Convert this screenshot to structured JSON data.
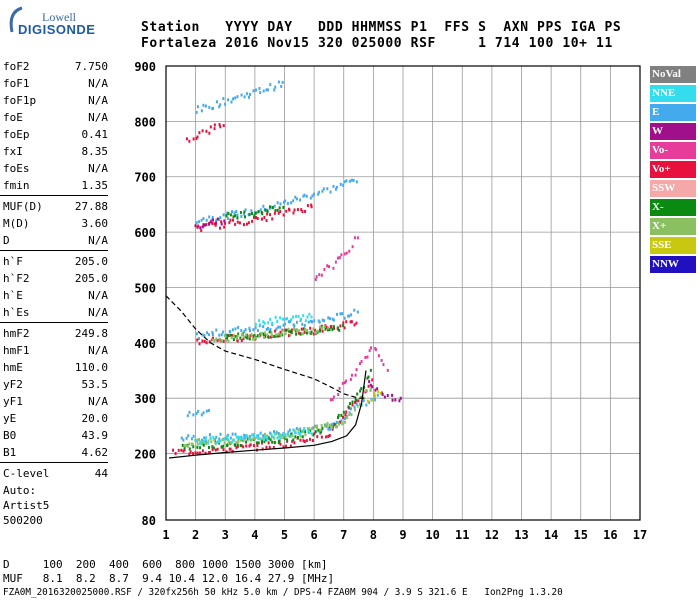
{
  "logo": {
    "line1": "Lowell",
    "line2": "DIGISONDE"
  },
  "header": {
    "labels": "Station   YYYY DAY   DDD HHMMSS P1  FFS S  AXN PPS IGA PS",
    "values": "Fortaleza 2016 Nov15 320 025000 RSF     1 714 100 10+ 11"
  },
  "params": [
    {
      "k": "foF2",
      "v": "7.750"
    },
    {
      "k": "foF1",
      "v": "N/A"
    },
    {
      "k": "foF1p",
      "v": "N/A"
    },
    {
      "k": "foE",
      "v": "N/A"
    },
    {
      "k": "foEp",
      "v": "0.41"
    },
    {
      "k": "fxI",
      "v": "8.35"
    },
    {
      "k": "foEs",
      "v": "N/A"
    },
    {
      "k": "fmin",
      "v": "1.35"
    },
    {
      "k": "MUF(D)",
      "v": "27.88"
    },
    {
      "k": "M(D)",
      "v": "3.60"
    },
    {
      "k": "D",
      "v": "N/A"
    },
    {
      "k": "h`F",
      "v": "205.0"
    },
    {
      "k": "h`F2",
      "v": "205.0"
    },
    {
      "k": "h`E",
      "v": "N/A"
    },
    {
      "k": "h`Es",
      "v": "N/A"
    },
    {
      "k": "hmF2",
      "v": "249.8"
    },
    {
      "k": "hmF1",
      "v": "N/A"
    },
    {
      "k": "hmE",
      "v": "110.0"
    },
    {
      "k": "yF2",
      "v": "53.5"
    },
    {
      "k": "yF1",
      "v": "N/A"
    },
    {
      "k": "yE",
      "v": "20.0"
    },
    {
      "k": "B0",
      "v": "43.9"
    },
    {
      "k": "B1",
      "v": "4.62"
    },
    {
      "k": "C-level",
      "v": "44"
    }
  ],
  "auto": {
    "l1": "Auto:",
    "l2": "Artist5",
    "l3": "500200"
  },
  "bottom": {
    "d_row": "D     100  200  400  600  800 1000 1500 3000 [km]",
    "muf_row": "MUF   8.1  8.2  8.7  9.4 10.4 12.0 16.4 27.9 [MHz]",
    "file_row": "FZA0M_2016320025000.RSF / 320fx256h 50 kHz 5.0 km / DPS-4 FZA0M 904 / 3.9 S 321.6 E   Ion2Png 1.3.20"
  },
  "legend": [
    {
      "label": "NoVal",
      "color": "#808080"
    },
    {
      "label": "NNE",
      "color": "#33ddee"
    },
    {
      "label": "E",
      "color": "#44aaee"
    },
    {
      "label": "W",
      "color": "#a0108a"
    },
    {
      "label": "Vo-",
      "color": "#e83c9a"
    },
    {
      "label": "Vo+",
      "color": "#e8103c"
    },
    {
      "label": "SSW",
      "color": "#f4a8a8"
    },
    {
      "label": "X-",
      "color": "#0a8a10"
    },
    {
      "label": "X+",
      "color": "#8ac060"
    },
    {
      "label": "SSE",
      "color": "#c8c810"
    },
    {
      "label": "NNW",
      "color": "#2010c0"
    }
  ],
  "chart_data": {
    "type": "scatter",
    "title": "",
    "xlabel": "",
    "ylabel": "",
    "xlim": [
      1,
      17
    ],
    "ylim": [
      80,
      900
    ],
    "xticks": [
      1,
      2,
      3,
      4,
      5,
      6,
      7,
      8,
      9,
      10,
      11,
      12,
      13,
      14,
      15,
      16,
      17
    ],
    "yticks": [
      80,
      200,
      300,
      400,
      500,
      600,
      700,
      800,
      900
    ],
    "grid": true,
    "series": [
      {
        "name": "E",
        "traces": [
          [
            [
              1.5,
              230
            ],
            [
              3,
              232
            ],
            [
              5,
              238
            ],
            [
              6.5,
              252
            ],
            [
              7.5,
              290
            ],
            [
              8.2,
              305
            ]
          ],
          [
            [
              1.7,
              272
            ],
            [
              2.5,
              275
            ]
          ],
          [
            [
              2,
              415
            ],
            [
              4,
              430
            ],
            [
              6,
              440
            ],
            [
              7.5,
              458
            ]
          ],
          [
            [
              2,
              625
            ],
            [
              4,
              640
            ],
            [
              6.5,
              680
            ],
            [
              7.5,
              700
            ]
          ],
          [
            [
              2,
              822
            ],
            [
              3.5,
              848
            ],
            [
              5,
              872
            ]
          ]
        ]
      },
      {
        "name": "Vo+",
        "traces": [
          [
            [
              1.2,
              205
            ],
            [
              3,
              210
            ],
            [
              5,
              220
            ],
            [
              6.5,
              240
            ],
            [
              7.5,
              300
            ],
            [
              8,
              340
            ]
          ],
          [
            [
              2,
              405
            ],
            [
              4,
              415
            ],
            [
              6,
              425
            ],
            [
              7.5,
              440
            ]
          ],
          [
            [
              2,
              610
            ],
            [
              4,
              625
            ],
            [
              6,
              650
            ]
          ],
          [
            [
              1.7,
              770
            ],
            [
              3,
              800
            ]
          ]
        ]
      },
      {
        "name": "X-",
        "traces": [
          [
            [
              1.5,
              215
            ],
            [
              3,
              220
            ],
            [
              5,
              230
            ],
            [
              6.5,
              250
            ],
            [
              7.5,
              310
            ],
            [
              8,
              360
            ]
          ],
          [
            [
              3,
              412
            ],
            [
              5,
              420
            ],
            [
              7,
              432
            ]
          ],
          [
            [
              3,
              630
            ],
            [
              5,
              648
            ]
          ]
        ]
      },
      {
        "name": "X+",
        "traces": [
          [
            [
              1.6,
              220
            ],
            [
              3.5,
              228
            ],
            [
              5.5,
              240
            ],
            [
              7,
              262
            ],
            [
              8,
              330
            ]
          ],
          [
            [
              2.5,
              408
            ],
            [
              4.5,
              418
            ],
            [
              6.5,
              430
            ]
          ]
        ]
      },
      {
        "name": "Vo-",
        "traces": [
          [
            [
              6.5,
              300
            ],
            [
              7.5,
              360
            ],
            [
              8,
              395
            ],
            [
              8.5,
              340
            ]
          ],
          [
            [
              6,
              520
            ],
            [
              7,
              560
            ],
            [
              7.5,
              600
            ]
          ]
        ]
      },
      {
        "name": "NNE",
        "traces": [
          [
            [
              2,
              225
            ],
            [
              4,
              232
            ],
            [
              6,
              244
            ]
          ],
          [
            [
              4,
              440
            ],
            [
              6,
              450
            ]
          ]
        ]
      },
      {
        "name": "W",
        "traces": [
          [
            [
              7.8,
              330
            ],
            [
              8.3,
              310
            ],
            [
              9,
              300
            ]
          ],
          [
            [
              2,
              612
            ],
            [
              3,
              625
            ]
          ]
        ]
      },
      {
        "name": "SSE",
        "traces": [
          [
            [
              7.8,
              300
            ],
            [
              8.3,
              320
            ]
          ]
        ]
      }
    ],
    "profile_solid": [
      [
        1.1,
        192
      ],
      [
        2,
        197
      ],
      [
        3,
        202
      ],
      [
        4,
        206
      ],
      [
        5,
        210
      ],
      [
        6,
        215
      ],
      [
        6.6,
        222
      ],
      [
        7.1,
        232
      ],
      [
        7.4,
        252
      ],
      [
        7.6,
        290
      ],
      [
        7.75,
        350
      ]
    ],
    "profile_dashed": [
      [
        1,
        485
      ],
      [
        1.5,
        458
      ],
      [
        2,
        425
      ],
      [
        2.5,
        400
      ],
      [
        3,
        385
      ],
      [
        4,
        370
      ],
      [
        5,
        352
      ],
      [
        6,
        335
      ],
      [
        6.5,
        322
      ],
      [
        7,
        308
      ],
      [
        7.5,
        300
      ],
      [
        7.75,
        300
      ]
    ]
  }
}
